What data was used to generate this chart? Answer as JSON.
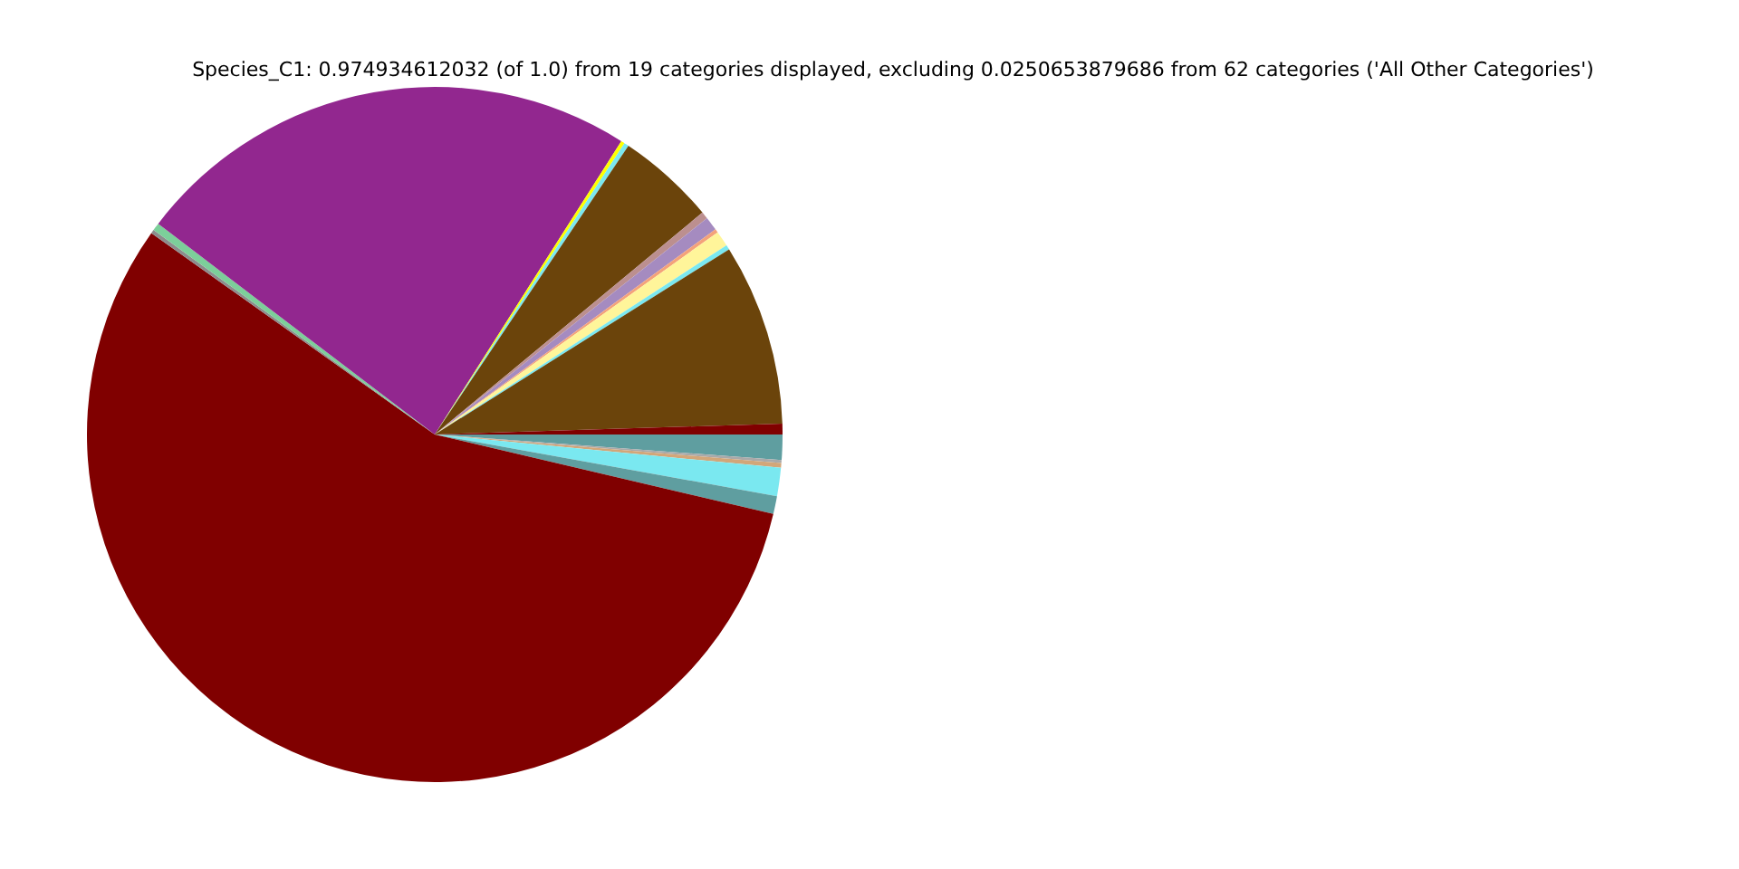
{
  "chart_data": {
    "type": "pie",
    "title": "Species_C1: 0.974934612032 (of 1.0) from 19 categories displayed, excluding 0.0250653879686 from 62 categories ('All Other Categories')",
    "categories": [
      null,
      null,
      null,
      null,
      null,
      null,
      null,
      null,
      null,
      null,
      null,
      null,
      null,
      null,
      null,
      null,
      null,
      null,
      null
    ],
    "values": [
      1.17,
      0.14,
      0.22,
      1.31,
      0.83,
      56.17,
      0.17,
      0.36,
      23.64,
      0.17,
      0.22,
      4.58,
      0.33,
      0.64,
      0.17,
      0.72,
      0.22,
      8.44,
      0.5
    ],
    "colors": [
      "#5f9ea0",
      "#a9a9a9",
      "#d2a679",
      "#7ae8f0",
      "#5f9ea0",
      "#800000",
      "#8c8c8c",
      "#7ccf9a",
      "#92278f",
      "#ffff00",
      "#7ae8f0",
      "#6b440b",
      "#bc8f8f",
      "#a58bc0",
      "#f4a27a",
      "#fff59a",
      "#7ae8f0",
      "#6b440b",
      "#800000"
    ],
    "legend": false
  }
}
